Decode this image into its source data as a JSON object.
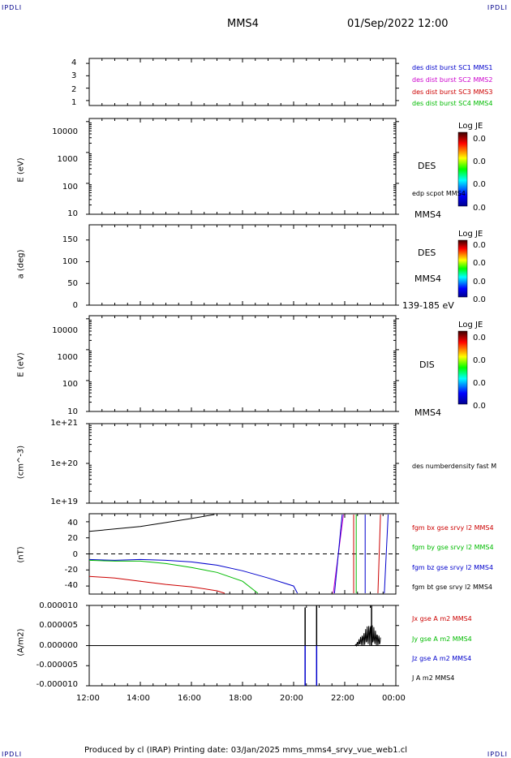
{
  "corners": {
    "tl": "IPDLI",
    "tr": "IPDLI",
    "bl": "IPDLI",
    "br": "IPDLI"
  },
  "header": {
    "spacecraft": "MMS4",
    "datetime": "01/Sep/2022 12:00"
  },
  "footer": {
    "text": "Produced by cl (IRAP)   Printing date: 03/Jan/2025   mms_mms4_srvy_vue_web1.cl"
  },
  "colors": {
    "blue": "#0000cc",
    "magenta": "#cc00cc",
    "red": "#cc0000",
    "green": "#00bb00",
    "black": "#000000"
  },
  "panels": {
    "p1": {
      "ylabel": "",
      "yticks": [
        "4",
        "3",
        "2",
        "1"
      ],
      "labels": [
        {
          "text": "des dist burst SC1 MMS1",
          "color": "#0000cc"
        },
        {
          "text": "des dist burst SC2 MMS2",
          "color": "#cc00cc"
        },
        {
          "text": "des dist burst SC3 MMS3",
          "color": "#cc0000"
        },
        {
          "text": "des dist burst SC4 MMS4",
          "color": "#00bb00"
        }
      ]
    },
    "p2": {
      "ylabel": "E (eV)",
      "yticks": [
        "10000",
        "1000",
        "100",
        "10"
      ],
      "name": "DES",
      "sub": "edp scpot MMS4",
      "below": "MMS4",
      "colorbar": {
        "title": "Log JE",
        "ticks": [
          "0.0",
          "0.0",
          "0.0",
          "0.0"
        ]
      }
    },
    "p3": {
      "ylabel": "a (deg)",
      "yticks": [
        "150",
        "100",
        "50",
        "0"
      ],
      "name": "DES",
      "sub": "MMS4",
      "below": "139-185 eV",
      "colorbar": {
        "title": "Log JE",
        "ticks": [
          "0.0",
          "0.0",
          "0.0",
          "0.0"
        ]
      }
    },
    "p4": {
      "ylabel": "E (eV)",
      "yticks": [
        "10000",
        "1000",
        "100",
        "10"
      ],
      "name": "DIS",
      "below": "MMS4",
      "colorbar": {
        "title": "Log JE",
        "ticks": [
          "0.0",
          "0.0",
          "0.0",
          "0.0"
        ]
      }
    },
    "p5": {
      "ylabel": "(cm^-3)",
      "yticks": [
        "1e+21",
        "1e+20",
        "1e+19"
      ],
      "sub": "des numberdensity fast M"
    },
    "p6": {
      "ylabel": "(nT)",
      "yticks": [
        "40",
        "20",
        "0",
        "-20",
        "-40"
      ],
      "labels": [
        {
          "text": "fgm bx gse srvy l2 MMS4",
          "color": "#cc0000"
        },
        {
          "text": "fgm by gse srvy l2 MMS4",
          "color": "#00bb00"
        },
        {
          "text": "fgm bz gse srvy l2 MMS4",
          "color": "#0000cc"
        },
        {
          "text": "fgm bt gse srvy l2 MMS4",
          "color": "#000000"
        }
      ]
    },
    "p7": {
      "ylabel": "(A/m2)",
      "yticks": [
        "0.000010",
        "0.000005",
        "0.000000",
        "-0.000005",
        "-0.000010"
      ],
      "labels": [
        {
          "text": "Jx gse A m2 MMS4",
          "color": "#cc0000"
        },
        {
          "text": "Jy gse A m2 MMS4",
          "color": "#00bb00"
        },
        {
          "text": "Jz gse A m2 MMS4",
          "color": "#0000cc"
        },
        {
          "text": "J A m2 MMS4",
          "color": "#000000"
        }
      ]
    }
  },
  "xaxis": {
    "ticks": [
      "12:00",
      "14:00",
      "16:00",
      "18:00",
      "20:00",
      "22:00",
      "00:00"
    ]
  },
  "chart_data": {
    "type": "line",
    "x_range_hours": [
      12,
      24
    ],
    "magnetic_field_nT": {
      "ylim": [
        -50,
        50
      ],
      "series": [
        {
          "name": "fgm bt gse srvy l2 MMS4",
          "color": "#000000",
          "x": [
            12.0,
            13.0,
            14.0,
            15.0,
            16.0,
            16.9
          ],
          "values": [
            28,
            31,
            34,
            39,
            44,
            49
          ]
        },
        {
          "name": "fgm bz gse srvy l2 MMS4",
          "color": "#0000cc",
          "x": [
            12.0,
            13.0,
            14.0,
            15.0,
            16.0,
            17.0,
            18.0,
            19.0,
            20.0,
            20.15
          ],
          "values": [
            -7,
            -8,
            -7,
            -8,
            -10,
            -14,
            -21,
            -30,
            -40,
            -49
          ]
        },
        {
          "name": "fgm by gse srvy l2 MMS4",
          "color": "#00bb00",
          "x": [
            12.0,
            13.0,
            14.0,
            15.0,
            16.0,
            17.0,
            18.0,
            18.6
          ],
          "values": [
            -8,
            -9,
            -9,
            -12,
            -17,
            -23,
            -34,
            -49
          ]
        },
        {
          "name": "fgm bx gse srvy l2 MMS4",
          "color": "#cc0000",
          "x": [
            12.0,
            13.0,
            14.0,
            15.0,
            16.0,
            17.0,
            17.3
          ],
          "values": [
            -28,
            -30,
            -34,
            -38,
            -41,
            -46,
            -49
          ]
        }
      ]
    },
    "current_density_A_m2": {
      "ylim": [
        -1e-05,
        1e-05
      ],
      "spikes": [
        {
          "x": 20.45,
          "value": 9.5e-06,
          "color": "#000000"
        },
        {
          "x": 20.9,
          "value": 1e-05,
          "color": "#000000"
        },
        {
          "x": 23.05,
          "value": 1e-05,
          "color": "#000000"
        },
        {
          "x": 20.45,
          "value": -1e-05,
          "color": "#0000cc"
        },
        {
          "x": 20.9,
          "value": -1e-05,
          "color": "#0000cc"
        }
      ]
    }
  }
}
